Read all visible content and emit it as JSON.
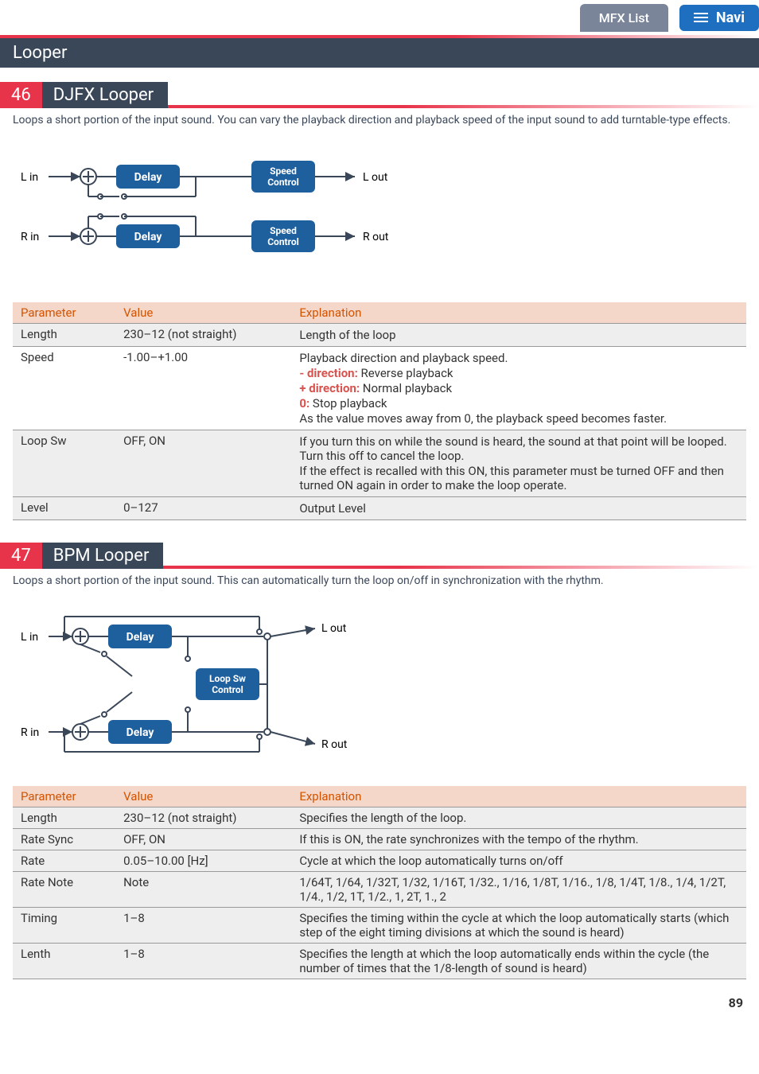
{
  "header": {
    "tab": "MFX List",
    "navi": "Navi"
  },
  "section": "Looper",
  "sub1": {
    "num": "46",
    "title": "DJFX Looper",
    "desc": "Loops a short portion of the input sound. You can vary the playback direction and playback speed of the input sound to add turntable-type effects.",
    "diagram": {
      "lin": "L in",
      "rin": "R in",
      "lout": "L out",
      "rout": "R out",
      "delay": "Delay",
      "speed1": "Speed",
      "speed2": "Control"
    },
    "thead": {
      "p": "Parameter",
      "v": "Value",
      "e": "Explanation"
    },
    "rows": [
      {
        "p": "Length",
        "v": "230–12 (not straight)",
        "e": [
          {
            "t": "Length of the loop"
          }
        ],
        "alt": true
      },
      {
        "p": "Speed",
        "v": "-1.00–+1.00",
        "e": [
          {
            "t": "Playback direction and playback speed."
          },
          {
            "prefix": "- direction:",
            "t": " Reverse playback"
          },
          {
            "prefix": "+ direction:",
            "t": " Normal playback"
          },
          {
            "prefix": "0:",
            "t": " Stop playback"
          },
          {
            "t": "As the value moves away from 0, the playback speed becomes faster."
          }
        ]
      },
      {
        "p": "Loop Sw",
        "v": "OFF, ON",
        "e": [
          {
            "t": "If you turn this on while the sound is heard, the sound at that point will be looped. Turn this off to cancel the loop."
          },
          {
            "t": "If the effect is recalled with this ON, this parameter must be turned OFF and then turned ON again in order to make the loop operate."
          }
        ],
        "alt": true
      },
      {
        "p": "Level",
        "v": "0–127",
        "e": [
          {
            "t": "Output Level"
          }
        ],
        "alt": true
      }
    ]
  },
  "sub2": {
    "num": "47",
    "title": "BPM Looper",
    "desc": "Loops a short portion of the input sound. This can automatically turn the loop on/off in synchronization with the rhythm.",
    "diagram": {
      "lin": "L in",
      "rin": "R in",
      "lout": "L out",
      "rout": "R out",
      "delay": "Delay",
      "loop1": "Loop Sw",
      "loop2": "Control"
    },
    "thead": {
      "p": "Parameter",
      "v": "Value",
      "e": "Explanation"
    },
    "rows": [
      {
        "p": "Length",
        "v": "230–12 (not straight)",
        "e": "Specifies the length of the loop.",
        "alt": true
      },
      {
        "p": "Rate Sync",
        "v": "OFF, ON",
        "e": "If this is ON, the rate synchronizes with the tempo of the rhythm.",
        "alt": true
      },
      {
        "p": "Rate",
        "v": "0.05–10.00 [Hz]",
        "e": "Cycle at which the loop automatically turns on/off",
        "alt": true
      },
      {
        "p": "Rate Note",
        "v": "Note",
        "e": "1/64T, 1/64, 1/32T, 1/32, 1/16T, 1/32., 1/16, 1/8T, 1/16., 1/8, 1/4T, 1/8., 1/4, 1/2T, 1/4., 1/2, 1T, 1/2., 1, 2T, 1., 2",
        "alt": true
      },
      {
        "p": "Timing",
        "v": "1–8",
        "e": "Specifies the timing within the cycle at which the loop automatically starts (which step of the eight timing divisions at which the sound is heard)",
        "alt": true
      },
      {
        "p": "Lenth",
        "v": "1–8",
        "e": "Specifies the length at which the loop automatically ends within the cycle (the number of times that the 1/8-length of sound is heard)",
        "alt": true
      }
    ]
  },
  "page": "89",
  "colors": {
    "header_tab_bg": "#7a8599",
    "navi_bg": "#1e6fbf",
    "red": "#e8344a",
    "section_bg": "#3a4759",
    "th_bg": "#f4d7c9",
    "th_color": "#d35400",
    "alt_row": "#eeeeee",
    "diagram_blue": "#1e5f9e",
    "diagram_stroke": "#3a4759"
  }
}
